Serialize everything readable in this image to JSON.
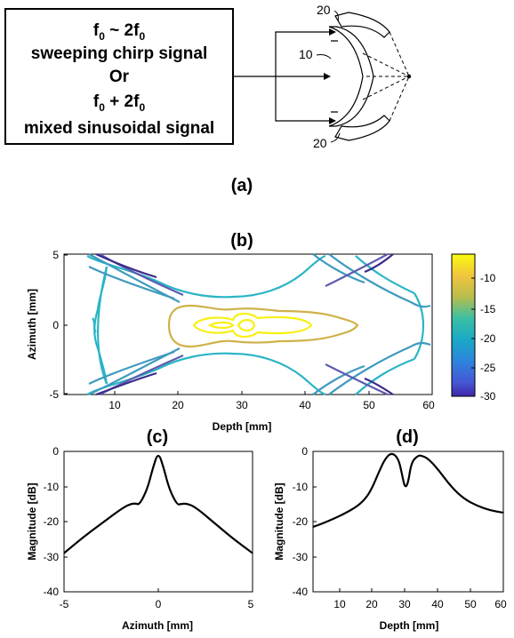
{
  "panel_a": {
    "label": "(a)",
    "signal_box": {
      "line1_base": "f",
      "line1_sub": "0",
      "line1_mid": " ~ 2f",
      "line1_sub2": "0",
      "line2": "sweeping chirp signal",
      "line3": "Or",
      "line4_base": "f",
      "line4_sub": "0",
      "line4_mid": " + 2f",
      "line4_sub2": "0",
      "line5": "mixed sinusoidal  signal"
    },
    "transducer": {
      "label_top": "20",
      "label_mid": "10",
      "label_bottom": "20"
    }
  },
  "chart_data": [
    {
      "type": "contour",
      "title": "(b)",
      "xlabel": "Depth [mm]",
      "ylabel": "Azimuth [mm]",
      "xlim": [
        2,
        60
      ],
      "ylim": [
        -5,
        5
      ],
      "xticks": [
        "10",
        "20",
        "30",
        "40",
        "50",
        "60"
      ],
      "yticks": [
        "5",
        "0",
        "-5"
      ],
      "colorbar": {
        "range": [
          -30,
          -6
        ],
        "ticks": [
          "-10",
          "-15",
          "-20",
          "-25",
          "-30"
        ]
      },
      "levels": [
        -6,
        -12,
        -18,
        -24,
        -30
      ]
    },
    {
      "type": "line",
      "title": "(c)",
      "xlabel": "Azimuth [mm]",
      "ylabel": "Magnitude [dB]",
      "xlim": [
        -5,
        5
      ],
      "ylim": [
        -40,
        0
      ],
      "xticks": [
        "-5",
        "0",
        "5"
      ],
      "yticks": [
        "0",
        "-10",
        "-20",
        "-30",
        "-40"
      ],
      "x": [
        -5,
        -4,
        -3,
        -2,
        -1.5,
        -1.2,
        -1,
        -0.6,
        -0.3,
        0,
        0.3,
        0.6,
        1,
        1.2,
        1.5,
        2,
        3,
        4,
        5
      ],
      "y": [
        -29,
        -24.5,
        -20.5,
        -16.5,
        -15,
        -14.8,
        -15.2,
        -11,
        -5,
        0,
        -5,
        -11,
        -15.2,
        -15,
        -14.8,
        -16,
        -20.5,
        -25,
        -29
      ]
    },
    {
      "type": "line",
      "title": "(d)",
      "xlabel": "Depth [mm]",
      "ylabel": "Magnitude [dB]",
      "xlim": [
        2,
        60
      ],
      "ylim": [
        -40,
        0
      ],
      "xticks": [
        "10",
        "20",
        "30",
        "40",
        "50",
        "60"
      ],
      "yticks": [
        "0",
        "-10",
        "-20",
        "-30",
        "-40"
      ],
      "x": [
        2,
        5,
        10,
        15,
        18,
        20,
        22,
        24,
        26,
        28,
        29,
        30,
        31,
        32,
        34,
        35,
        37,
        40,
        44,
        48,
        52,
        56,
        60
      ],
      "y": [
        -21.5,
        -20.5,
        -18.5,
        -16,
        -13.5,
        -10.5,
        -6,
        -2,
        -0.3,
        -2,
        -6,
        -10.5,
        -9,
        -3,
        -1.2,
        -1.2,
        -2,
        -5,
        -10,
        -13.5,
        -15.5,
        -16.8,
        -17.5
      ]
    }
  ]
}
